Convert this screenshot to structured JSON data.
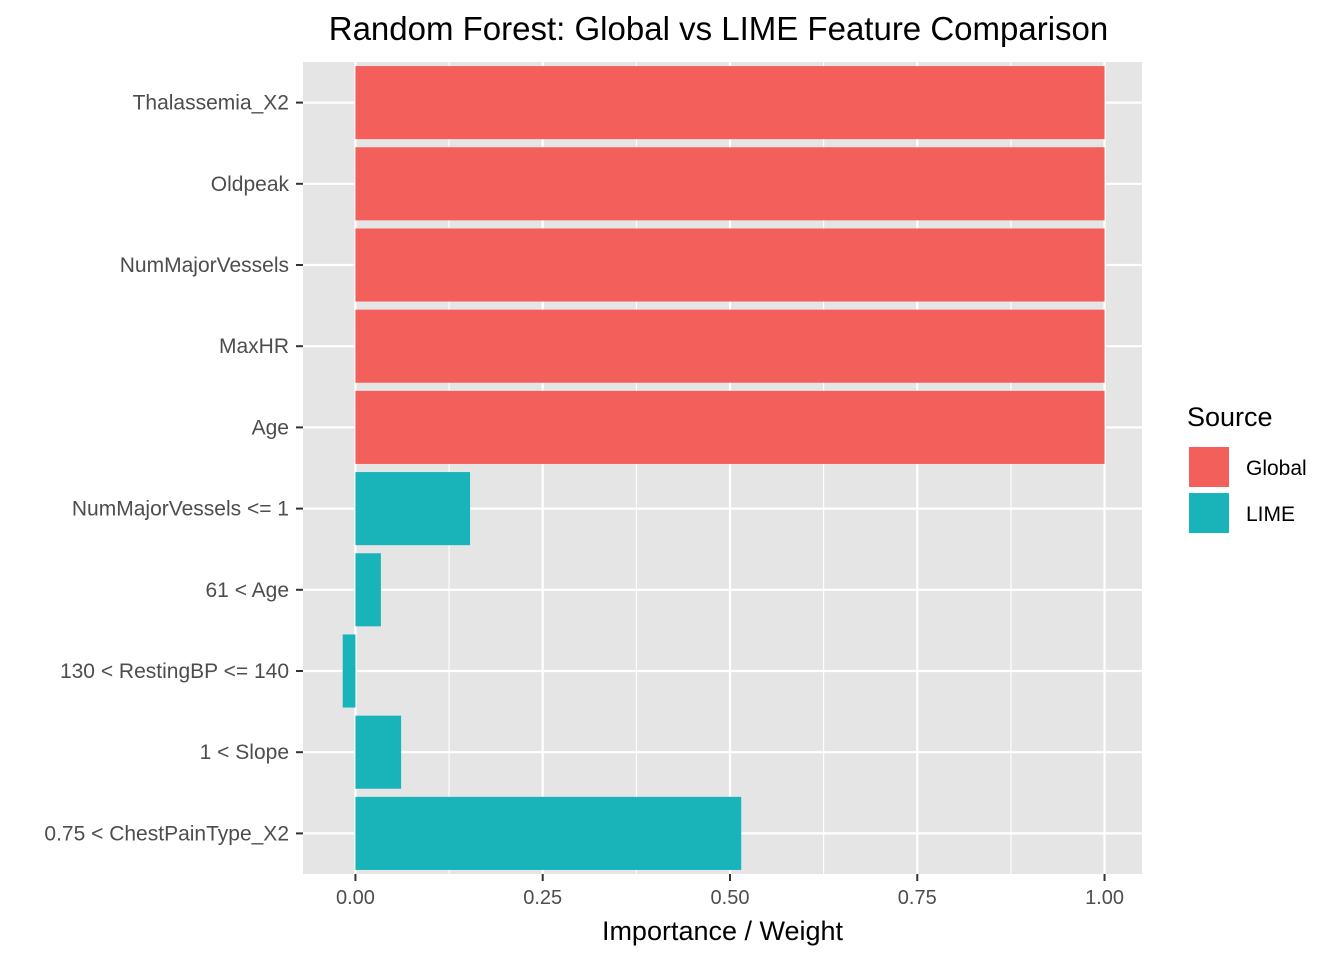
{
  "chart_data": {
    "type": "bar",
    "orientation": "horizontal",
    "title": "Random Forest: Global vs LIME Feature Comparison",
    "xlabel": "Importance / Weight",
    "ylabel": "",
    "xlim": [
      -0.07,
      1.05
    ],
    "xticks": [
      0.0,
      0.25,
      0.5,
      0.75,
      1.0
    ],
    "xtick_labels": [
      "0.00",
      "0.25",
      "0.50",
      "0.75",
      "1.00"
    ],
    "grid": true,
    "legend": {
      "title": "Source",
      "position": "right"
    },
    "colors": {
      "Global": "#f35f5b",
      "LIME": "#19b4b9",
      "panel": "#e5e5e5",
      "grid": "#ffffff"
    },
    "categories": [
      "Thalassemia_X2",
      "Oldpeak",
      "NumMajorVessels",
      "MaxHR",
      "Age",
      "NumMajorVessels <= 1",
      "61 < Age",
      "130 < RestingBP <= 140",
      "1 < Slope",
      "0.75 < ChestPainType_X2"
    ],
    "series": [
      {
        "name": "Global",
        "values": [
          1.0,
          1.0,
          1.0,
          1.0,
          1.0,
          null,
          null,
          null,
          null,
          null
        ]
      },
      {
        "name": "LIME",
        "values": [
          null,
          null,
          null,
          null,
          null,
          0.153,
          0.034,
          -0.017,
          0.061,
          0.515
        ]
      }
    ]
  }
}
